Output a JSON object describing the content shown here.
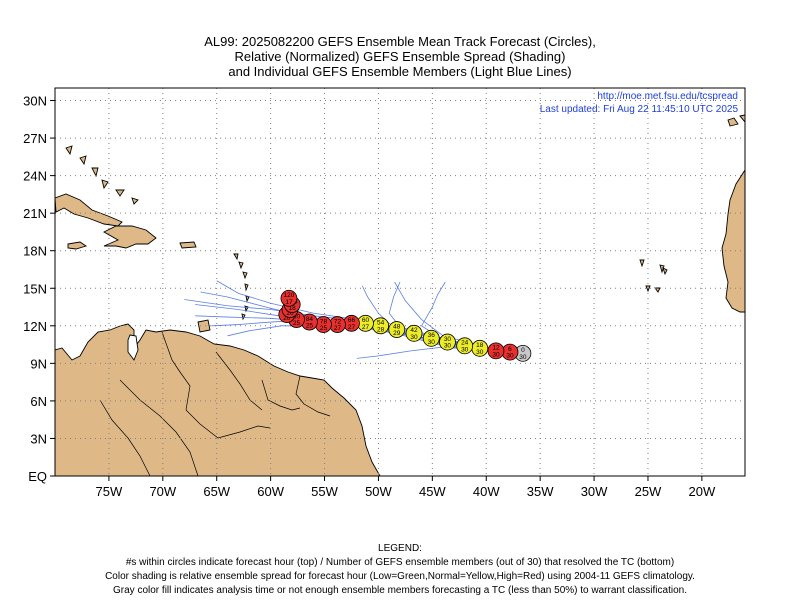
{
  "title": {
    "line1": "AL99: 2025082200 GEFS Ensemble Mean Track Forecast (Circles),",
    "line2": "Relative (Normalized) GEFS Ensemble Spread (Shading)",
    "line3": "and Individual GEFS Ensemble Members (Light Blue Lines)"
  },
  "credit": {
    "url": "http://moe.met.fsu.edu/tcspread",
    "updated": "Last updated: Fri Aug 22 11:45:10 UTC 2025"
  },
  "map": {
    "lon_range": [
      -80,
      -16
    ],
    "lat_range": [
      0,
      31
    ],
    "lon_ticks": [
      -75,
      -70,
      -65,
      -60,
      -55,
      -50,
      -45,
      -40,
      -35,
      -30,
      -25,
      -20
    ],
    "lon_tick_labels": [
      "75W",
      "70W",
      "65W",
      "60W",
      "55W",
      "50W",
      "45W",
      "40W",
      "35W",
      "30W",
      "25W",
      "20W"
    ],
    "lat_ticks": [
      0,
      3,
      6,
      9,
      12,
      15,
      18,
      21,
      24,
      27,
      30
    ],
    "lat_tick_labels": [
      "EQ",
      "3N",
      "6N",
      "9N",
      "12N",
      "15N",
      "18N",
      "21N",
      "24N",
      "27N",
      "30N"
    ],
    "grid": "dotted",
    "land_color": "#deb887",
    "ocean_color": "#ffffff"
  },
  "colors": {
    "low": "#2e8b57",
    "normal": "#ecec28",
    "high": "#e8302e",
    "gray": "#c8c8c8",
    "member_line": "#4169e1"
  },
  "track": [
    {
      "lon": -36.6,
      "lat": 9.8,
      "hour": "0",
      "members": "30",
      "spread": "gray"
    },
    {
      "lon": -37.8,
      "lat": 9.9,
      "hour": "6",
      "members": "30",
      "spread": "high"
    },
    {
      "lon": -39.1,
      "lat": 10.0,
      "hour": "12",
      "members": "30",
      "spread": "high"
    },
    {
      "lon": -40.6,
      "lat": 10.2,
      "hour": "18",
      "members": "30",
      "spread": "normal"
    },
    {
      "lon": -42.0,
      "lat": 10.4,
      "hour": "24",
      "members": "30",
      "spread": "normal"
    },
    {
      "lon": -43.6,
      "lat": 10.7,
      "hour": "30",
      "members": "30",
      "spread": "normal"
    },
    {
      "lon": -45.1,
      "lat": 11.0,
      "hour": "36",
      "members": "30",
      "spread": "normal"
    },
    {
      "lon": -46.7,
      "lat": 11.4,
      "hour": "42",
      "members": "30",
      "spread": "normal"
    },
    {
      "lon": -48.3,
      "lat": 11.7,
      "hour": "48",
      "members": "29",
      "spread": "normal"
    },
    {
      "lon": -49.8,
      "lat": 12.0,
      "hour": "54",
      "members": "28",
      "spread": "normal"
    },
    {
      "lon": -51.2,
      "lat": 12.2,
      "hour": "60",
      "members": "27",
      "spread": "normal"
    },
    {
      "lon": -52.5,
      "lat": 12.2,
      "hour": "66",
      "members": "27",
      "spread": "high"
    },
    {
      "lon": -53.8,
      "lat": 12.1,
      "hour": "72",
      "members": "27",
      "spread": "high"
    },
    {
      "lon": -55.1,
      "lat": 12.1,
      "hour": "78",
      "members": "25",
      "spread": "high"
    },
    {
      "lon": -56.4,
      "lat": 12.3,
      "hour": "84",
      "members": "25",
      "spread": "high"
    },
    {
      "lon": -57.6,
      "lat": 12.5,
      "hour": "90",
      "members": "25",
      "spread": "high"
    },
    {
      "lon": -58.5,
      "lat": 12.9,
      "hour": "96",
      "members": "20",
      "spread": "high"
    },
    {
      "lon": -58.2,
      "lat": 13.3,
      "hour": "102",
      "members": "20",
      "spread": "high"
    },
    {
      "lon": -58.0,
      "lat": 13.7,
      "hour": "108",
      "members": "18",
      "spread": "high"
    },
    {
      "lon": -58.3,
      "lat": 14.2,
      "hour": "120",
      "members": "17",
      "spread": "high"
    }
  ],
  "members": [
    [
      [
        -36.6,
        9.8
      ],
      [
        -40,
        10.1
      ],
      [
        -44,
        10.6
      ],
      [
        -48,
        11.5
      ],
      [
        -52,
        12.1
      ],
      [
        -56,
        12.6
      ],
      [
        -60,
        13.4
      ],
      [
        -64,
        14.3
      ],
      [
        -66.5,
        14.7
      ]
    ],
    [
      [
        -36.6,
        9.8
      ],
      [
        -40,
        10.0
      ],
      [
        -44,
        10.4
      ],
      [
        -48,
        11.3
      ],
      [
        -52,
        12.0
      ],
      [
        -56,
        12.3
      ],
      [
        -60,
        12.6
      ],
      [
        -64,
        12.7
      ],
      [
        -67,
        12.8
      ]
    ],
    [
      [
        -36.6,
        9.8
      ],
      [
        -40,
        10.2
      ],
      [
        -44,
        10.9
      ],
      [
        -48,
        11.8
      ],
      [
        -52,
        12.5
      ],
      [
        -56,
        13.0
      ],
      [
        -60,
        13.8
      ],
      [
        -63,
        14.6
      ],
      [
        -65,
        15.6
      ]
    ],
    [
      [
        -36.6,
        9.8
      ],
      [
        -40,
        10.3
      ],
      [
        -44,
        11.2
      ],
      [
        -46,
        12.5
      ],
      [
        -47.5,
        14.0
      ],
      [
        -48.5,
        15.5
      ]
    ],
    [
      [
        -36.6,
        9.8
      ],
      [
        -40,
        10.0
      ],
      [
        -44,
        10.3
      ],
      [
        -47,
        10.0
      ],
      [
        -50,
        9.6
      ],
      [
        -52,
        9.4
      ]
    ],
    [
      [
        -36.6,
        9.8
      ],
      [
        -40,
        10.1
      ],
      [
        -44,
        10.7
      ],
      [
        -48,
        11.4
      ],
      [
        -50,
        13.0
      ],
      [
        -51,
        14.3
      ],
      [
        -51.5,
        15.2
      ]
    ],
    [
      [
        -36.6,
        9.8
      ],
      [
        -40,
        10.1
      ],
      [
        -44,
        10.9
      ],
      [
        -46,
        12.0
      ],
      [
        -45,
        13.5
      ],
      [
        -44.5,
        14.5
      ],
      [
        -43.8,
        15.5
      ]
    ],
    [
      [
        -36.6,
        9.8
      ],
      [
        -40,
        10.1
      ],
      [
        -44,
        10.6
      ],
      [
        -48,
        11.6
      ],
      [
        -52,
        12.3
      ],
      [
        -56,
        12.5
      ],
      [
        -60,
        12.3
      ],
      [
        -63,
        12.1
      ],
      [
        -65.5,
        12.0
      ]
    ],
    [
      [
        -36.6,
        9.8
      ],
      [
        -40,
        10.0
      ],
      [
        -44,
        10.5
      ],
      [
        -48,
        11.4
      ],
      [
        -52,
        11.9
      ],
      [
        -56,
        12.0
      ],
      [
        -59,
        12.0
      ],
      [
        -62,
        11.6
      ],
      [
        -64,
        11.2
      ]
    ],
    [
      [
        -36.6,
        9.8
      ],
      [
        -40,
        10.1
      ],
      [
        -44,
        10.8
      ],
      [
        -48,
        11.7
      ],
      [
        -52,
        12.4
      ],
      [
        -56,
        12.8
      ],
      [
        -60,
        13.3
      ],
      [
        -64,
        13.6
      ],
      [
        -68,
        14.1
      ]
    ],
    [
      [
        -36.6,
        9.8
      ],
      [
        -40,
        10.2
      ],
      [
        -44,
        11.0
      ],
      [
        -48,
        11.9
      ],
      [
        -49,
        13.0
      ],
      [
        -48.6,
        14.3
      ],
      [
        -48,
        15.5
      ]
    ],
    [
      [
        -36.6,
        9.8
      ],
      [
        -40,
        10.1
      ],
      [
        -44,
        10.7
      ],
      [
        -48,
        11.5
      ],
      [
        -52,
        12.1
      ],
      [
        -56,
        12.4
      ],
      [
        -60,
        12.9
      ],
      [
        -63,
        13.3
      ],
      [
        -67,
        13.7
      ]
    ]
  ],
  "legend": {
    "heading": "LEGEND:",
    "line1": "#s within circles indicate forecast hour (top) / Number of GEFS ensemble members (out of 30) that resolved the TC (bottom)",
    "line2": "Color shading is relative ensemble spread for forecast hour (Low=Green,Normal=Yellow,High=Red) using 2004-11 GEFS climatology.",
    "line3": "Gray color fill indicates analysis time or not enough ensemble members forecasting a TC (less than 50%) to warrant classification."
  }
}
